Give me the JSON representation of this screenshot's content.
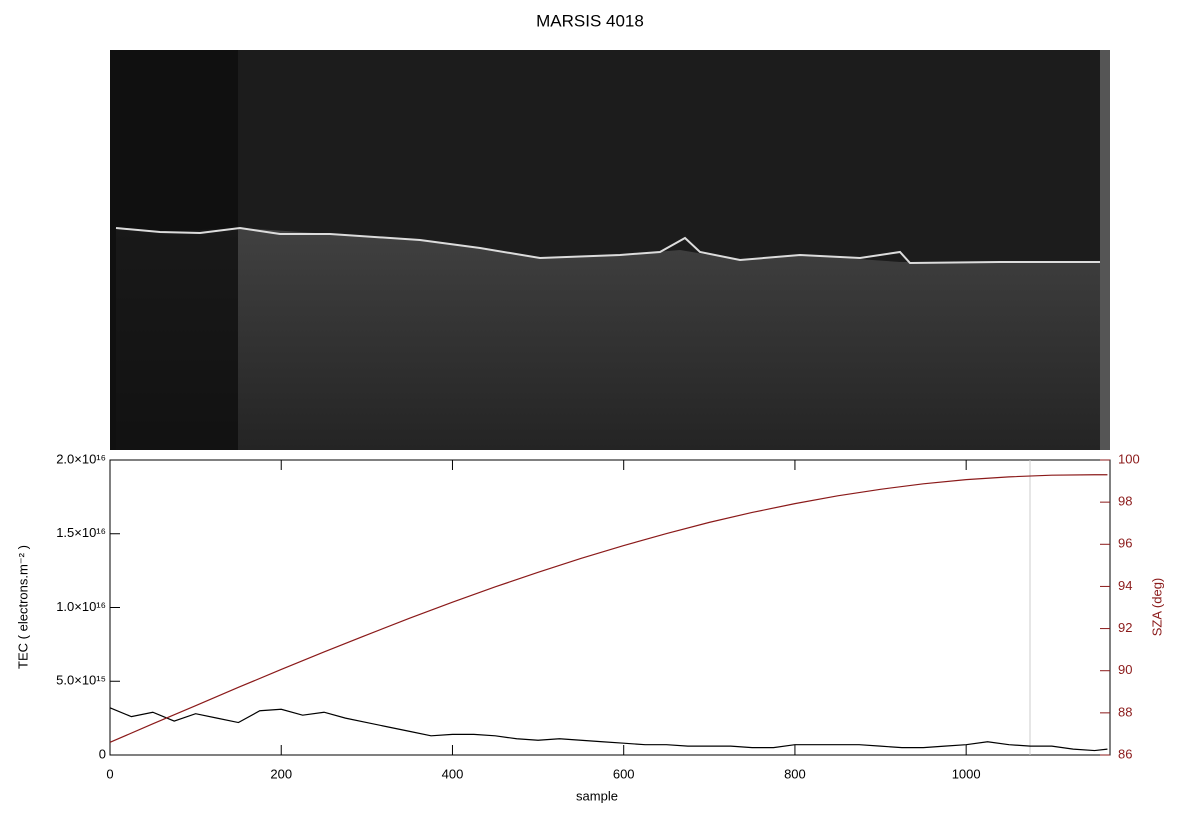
{
  "chart_data": {
    "type": "line",
    "title": "MARSIS 4018",
    "x_label": "sample",
    "y_label": "TEC ( electrons.m⁻² )",
    "y2_label": "SZA (deg)",
    "xlim": [
      0,
      1168
    ],
    "xticks": [
      0,
      200,
      400,
      600,
      800,
      1000
    ],
    "ylim": [
      0,
      2e+16
    ],
    "yticks": [
      0,
      {
        "value": 5000000000000000.0,
        "label": "5.0×10¹⁵"
      },
      {
        "value": 1e+16,
        "label": "1.0×10¹⁶"
      },
      {
        "value": 1.5e+16,
        "label": "1.5×10¹⁶"
      },
      {
        "value": 2e+16,
        "label": "2.0×10¹⁶"
      }
    ],
    "y2lim": [
      86,
      100
    ],
    "y2ticks": [
      86,
      88,
      90,
      92,
      94,
      96,
      98,
      100
    ],
    "y2_color": "#8b1a1a",
    "series": [
      {
        "color": "#000000",
        "x": [
          0,
          25,
          50,
          75,
          100,
          125,
          150,
          175,
          200,
          225,
          250,
          275,
          300,
          325,
          350,
          375,
          400,
          425,
          450,
          475,
          500,
          525,
          550,
          575,
          600,
          625,
          650,
          675,
          700,
          725,
          750,
          775,
          800,
          825,
          850,
          875,
          900,
          925,
          950,
          975,
          1000,
          1025,
          1050,
          1075,
          1100,
          1125,
          1150,
          1165
        ],
        "values": [
          3200000000000000.0,
          2600000000000000.0,
          2900000000000000.0,
          2300000000000000.0,
          2800000000000000.0,
          2500000000000000.0,
          2200000000000000.0,
          3000000000000000.0,
          3100000000000000.0,
          2700000000000000.0,
          2900000000000000.0,
          2500000000000000.0,
          2200000000000000.0,
          1900000000000000.0,
          1600000000000000.0,
          1300000000000000.0,
          1400000000000000.0,
          1400000000000000.0,
          1300000000000000.0,
          1100000000000000.0,
          1000000000000000.0,
          1100000000000000.0,
          1000000000000000.0,
          900000000000000.0,
          800000000000000.0,
          700000000000000.0,
          700000000000000.0,
          600000000000000.0,
          600000000000000.0,
          600000000000000.0,
          500000000000000.0,
          500000000000000.0,
          700000000000000.0,
          700000000000000.0,
          700000000000000.0,
          700000000000000.0,
          600000000000000.0,
          500000000000000.0,
          500000000000000.0,
          600000000000000.0,
          700000000000000.0,
          900000000000000.0,
          700000000000000.0,
          600000000000000.0,
          600000000000000.0,
          400000000000000.0,
          300000000000000.0,
          400000000000000.0
        ]
      },
      {
        "color": "#8b1a1a",
        "axis": "y2",
        "x": [
          0,
          50,
          100,
          150,
          200,
          250,
          300,
          350,
          400,
          450,
          500,
          550,
          600,
          650,
          700,
          750,
          800,
          850,
          900,
          950,
          1000,
          1050,
          1100,
          1150,
          1165
        ],
        "values": [
          86.6,
          87.48,
          88.34,
          89.21,
          90.06,
          90.89,
          91.7,
          92.49,
          93.25,
          93.98,
          94.67,
          95.33,
          95.94,
          96.51,
          97.04,
          97.51,
          97.93,
          98.3,
          98.61,
          98.87,
          99.07,
          99.2,
          99.28,
          99.3,
          99.3
        ]
      }
    ]
  }
}
